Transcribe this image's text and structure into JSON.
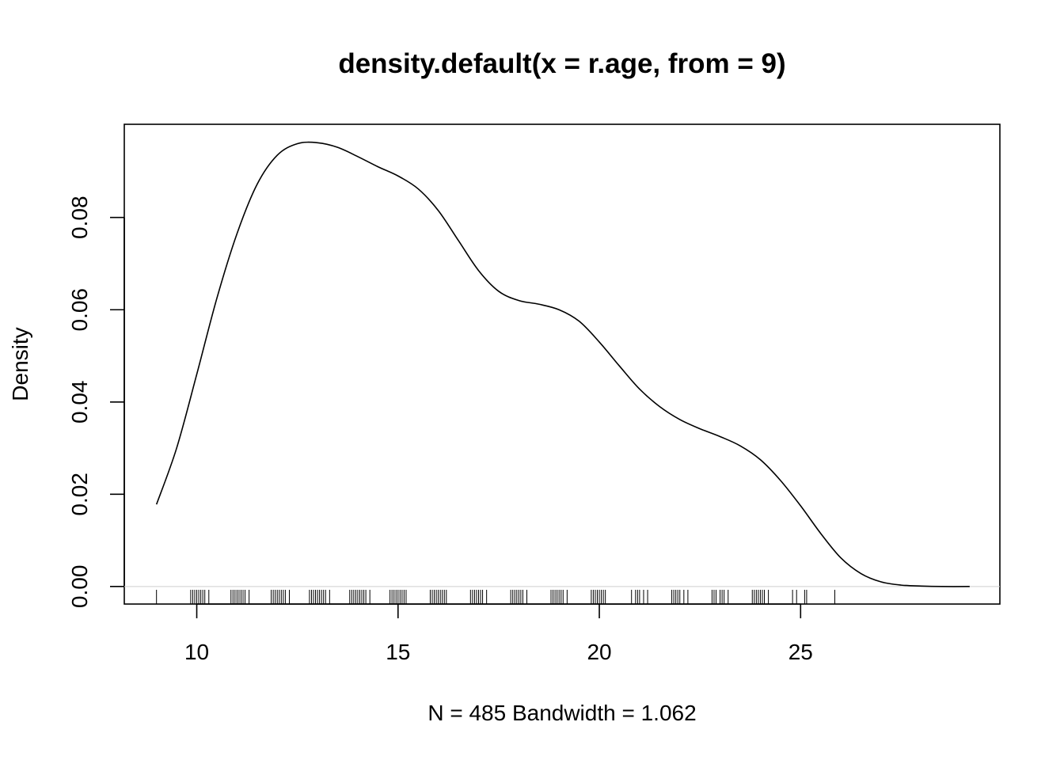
{
  "chart_data": {
    "type": "line",
    "title": "density.default(x = r.age, from = 9)",
    "xlabel": "N = 485   Bandwidth = 1.062",
    "ylabel": "Density",
    "xlim": [
      8.2,
      29.95
    ],
    "ylim": [
      -0.0038,
      0.1002
    ],
    "x_ticks": [
      10,
      15,
      20,
      25
    ],
    "x_tick_labels": [
      "10",
      "15",
      "20",
      "25"
    ],
    "y_ticks": [
      0.0,
      0.02,
      0.04,
      0.06,
      0.08
    ],
    "y_tick_labels": [
      "0.00",
      "0.02",
      "0.04",
      "0.06",
      "0.08"
    ],
    "grid": false,
    "series": [
      {
        "x": [
          9.0,
          9.5,
          10.0,
          10.5,
          11.0,
          11.5,
          12.0,
          12.5,
          13.0,
          13.5,
          14.0,
          14.5,
          15.0,
          15.5,
          16.0,
          16.5,
          17.0,
          17.5,
          18.0,
          18.5,
          19.0,
          19.5,
          20.0,
          20.5,
          21.0,
          21.5,
          22.0,
          22.5,
          23.0,
          23.5,
          24.0,
          24.5,
          25.0,
          25.5,
          26.0,
          26.5,
          27.0,
          27.5,
          28.0,
          28.5,
          29.2
        ],
        "y": [
          0.0178,
          0.03,
          0.046,
          0.0625,
          0.0765,
          0.0872,
          0.0935,
          0.096,
          0.0962,
          0.0952,
          0.0932,
          0.091,
          0.089,
          0.0862,
          0.0815,
          0.075,
          0.0685,
          0.064,
          0.062,
          0.0612,
          0.06,
          0.0575,
          0.053,
          0.0478,
          0.0428,
          0.039,
          0.0362,
          0.0342,
          0.0325,
          0.0305,
          0.0275,
          0.023,
          0.0175,
          0.0115,
          0.0062,
          0.0028,
          0.001,
          0.0003,
          0.0001,
          0.0,
          0.0
        ]
      }
    ],
    "rug": [
      9.0,
      9.85,
      9.9,
      9.95,
      10.0,
      10.05,
      10.1,
      10.15,
      10.2,
      10.3,
      10.85,
      10.9,
      10.95,
      11.0,
      11.05,
      11.1,
      11.15,
      11.2,
      11.3,
      11.85,
      11.9,
      11.95,
      12.0,
      12.05,
      12.1,
      12.15,
      12.2,
      12.3,
      12.8,
      12.85,
      12.9,
      12.95,
      13.0,
      13.05,
      13.1,
      13.15,
      13.2,
      13.3,
      13.8,
      13.85,
      13.9,
      13.95,
      14.0,
      14.05,
      14.1,
      14.15,
      14.2,
      14.3,
      14.8,
      14.85,
      14.9,
      14.95,
      15.0,
      15.05,
      15.1,
      15.15,
      15.2,
      15.8,
      15.85,
      15.9,
      15.95,
      16.0,
      16.05,
      16.1,
      16.15,
      16.2,
      16.8,
      16.85,
      16.9,
      16.95,
      17.0,
      17.05,
      17.1,
      17.2,
      17.8,
      17.85,
      17.9,
      17.95,
      18.0,
      18.05,
      18.1,
      18.2,
      18.8,
      18.85,
      18.9,
      18.95,
      19.0,
      19.05,
      19.1,
      19.2,
      19.8,
      19.85,
      19.9,
      19.95,
      20.0,
      20.05,
      20.1,
      20.15,
      20.8,
      20.9,
      20.95,
      21.0,
      21.1,
      21.2,
      21.8,
      21.85,
      21.9,
      21.95,
      22.0,
      22.1,
      22.2,
      22.8,
      22.85,
      22.9,
      23.0,
      23.05,
      23.1,
      23.2,
      23.8,
      23.85,
      23.9,
      23.95,
      24.0,
      24.05,
      24.1,
      24.2,
      24.8,
      24.9,
      25.1,
      25.15,
      25.85
    ]
  }
}
